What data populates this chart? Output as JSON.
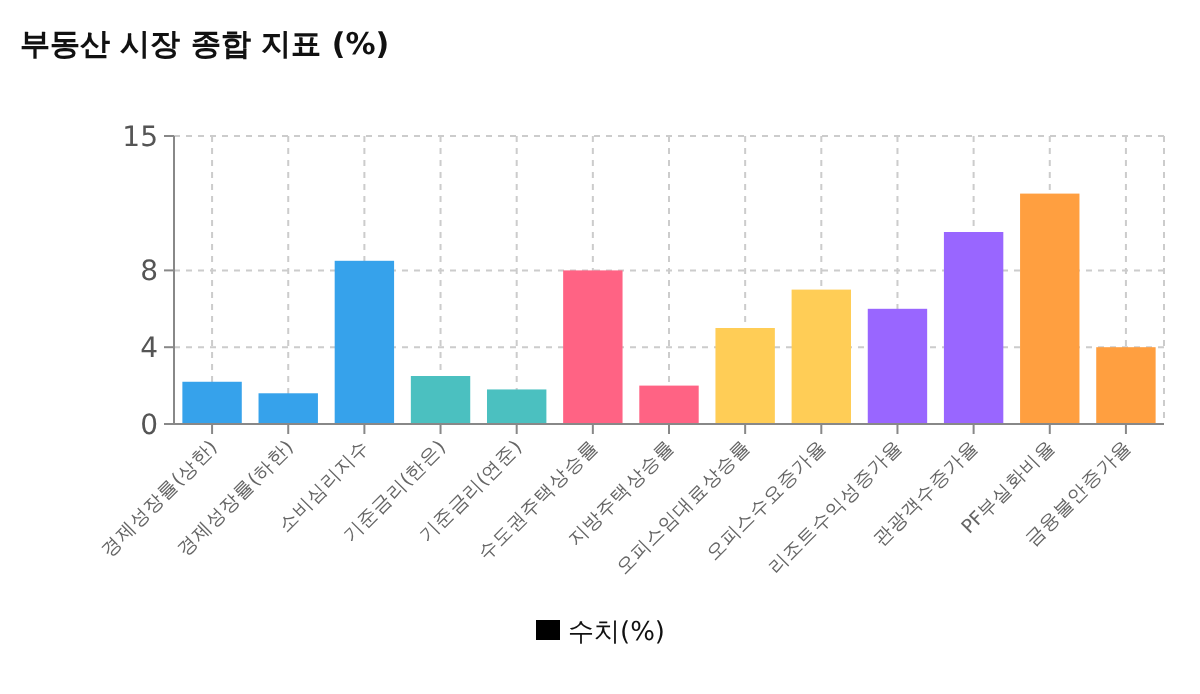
{
  "chart_data": {
    "type": "bar",
    "title": "부동산 시장 종합 지표 (%)",
    "categories": [
      "경제성장률(상한)",
      "경제성장률(하한)",
      "소비심리지수",
      "기준금리(한은)",
      "기준금리(연준)",
      "수도권주택상승률",
      "지방주택상승률",
      "오피스임대료상승률",
      "오피스수요증가율",
      "리조트수익성증가율",
      "관광객수증가율",
      "PF부실화비율",
      "금융불안증가율"
    ],
    "series": [
      {
        "name": "수치(%)",
        "values": [
          2.2,
          1.6,
          8.5,
          2.5,
          1.8,
          8.0,
          2.0,
          5.0,
          7.0,
          6.0,
          10.0,
          12.0,
          4.0
        ],
        "colors": [
          "#36a2eb",
          "#36a2eb",
          "#36a2eb",
          "#4bc0c0",
          "#4bc0c0",
          "#ff6384",
          "#ff6384",
          "#ffcd56",
          "#ffcd56",
          "#9966ff",
          "#9966ff",
          "#ff9f40",
          "#ff9f40"
        ]
      }
    ],
    "ylim": [
      0,
      15
    ],
    "yticks": [
      0,
      4,
      8,
      15
    ],
    "grid": true,
    "legend": "bottom"
  }
}
